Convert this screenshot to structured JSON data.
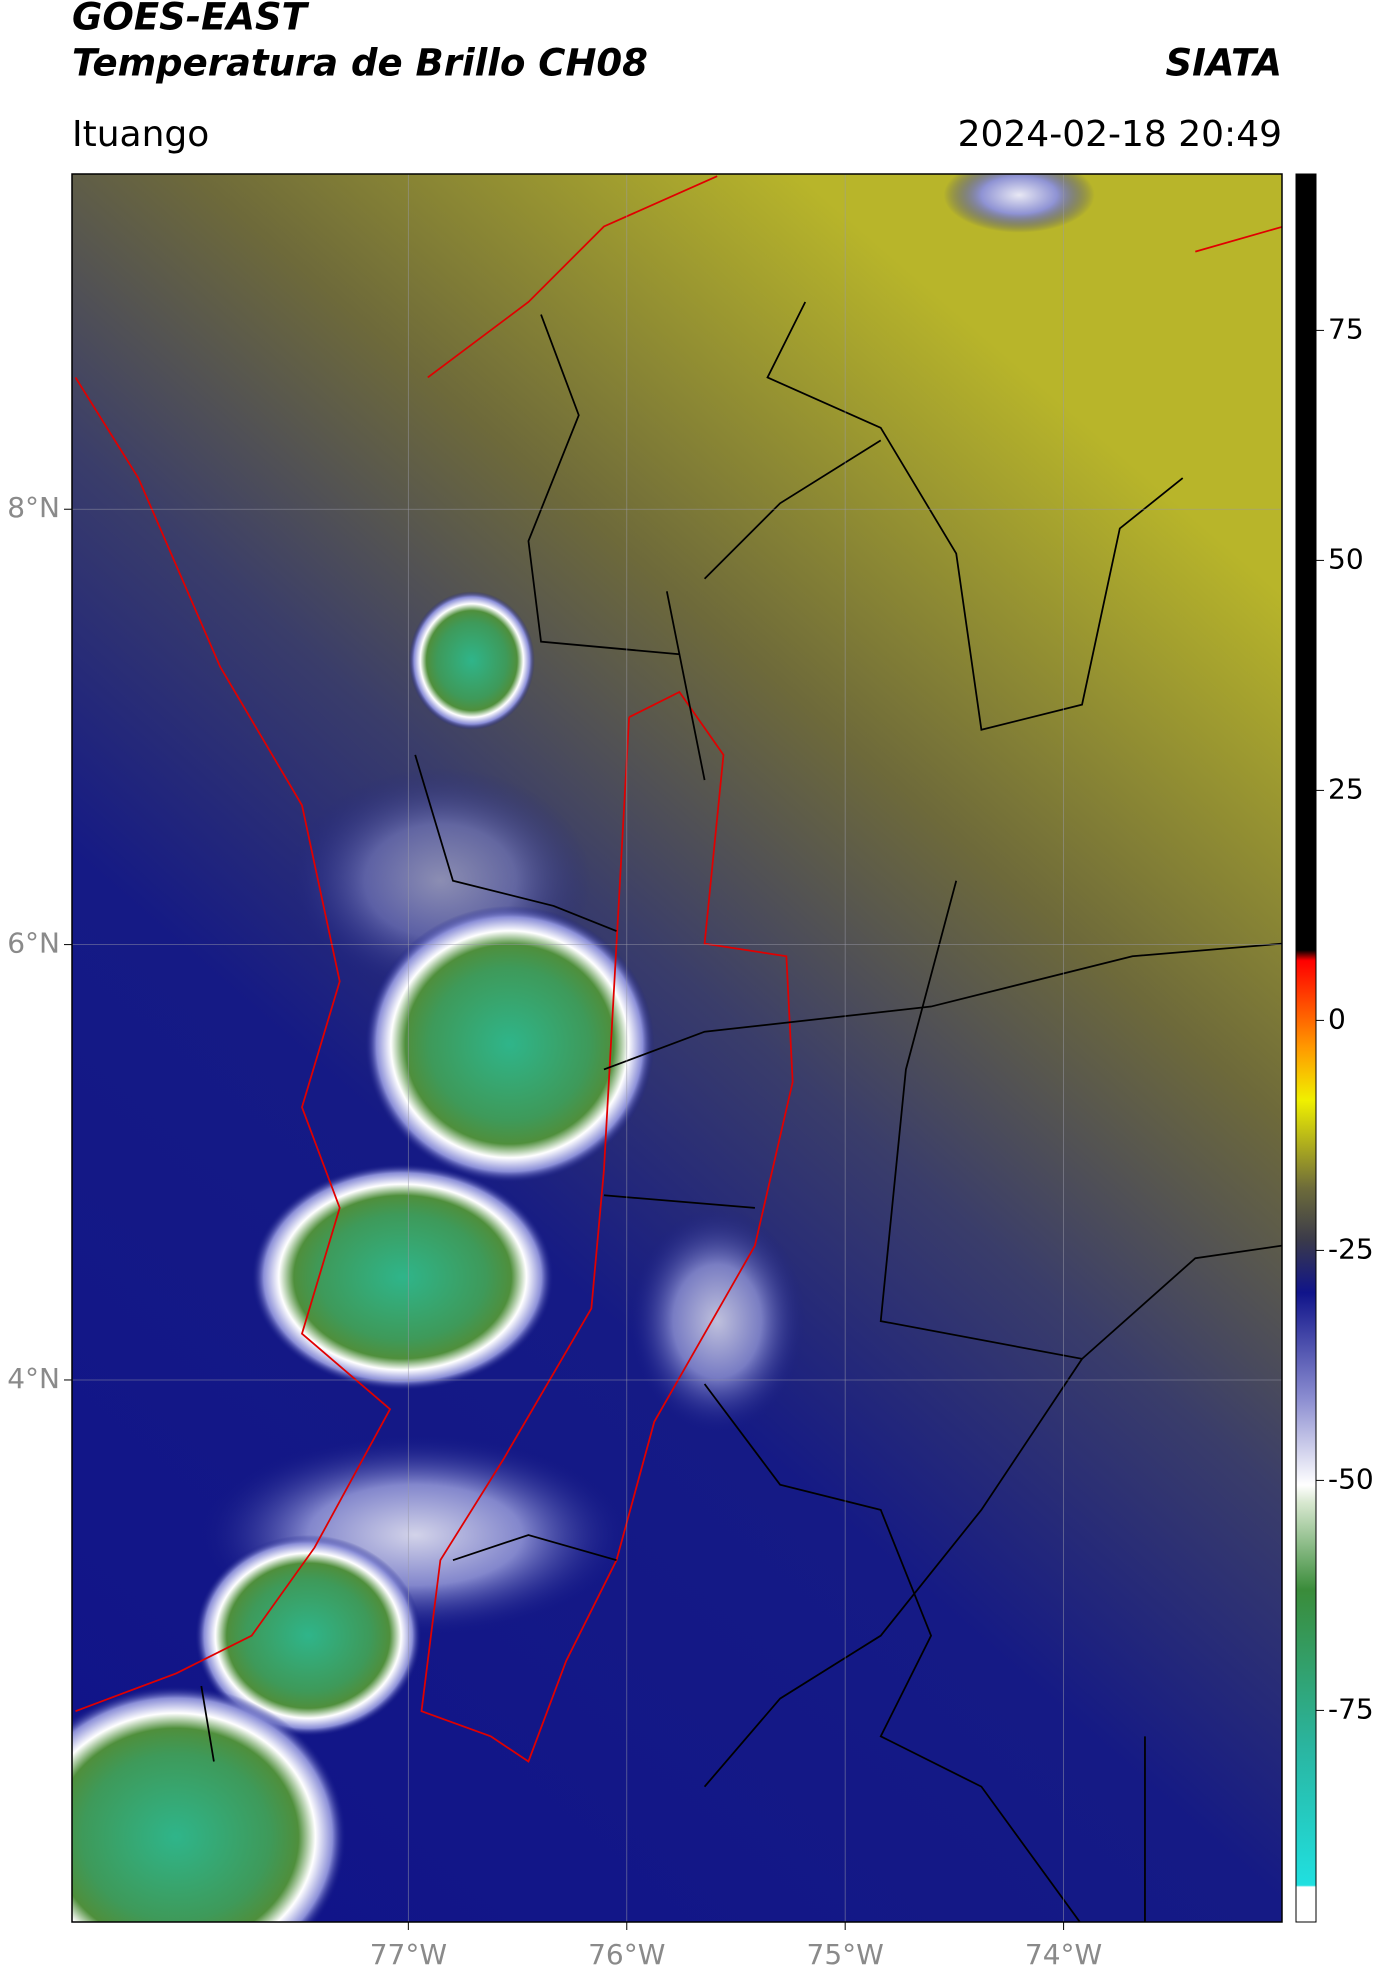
{
  "header": {
    "title": "GOES-EAST",
    "subtitle": "Temperatura de Brillo CH08",
    "source": "SIATA",
    "location": "Ituango",
    "datetime": "2024-02-18 20:49"
  },
  "map": {
    "xlim": [
      -78.54,
      -73.0
    ],
    "xticks": [
      {
        "value": -77,
        "label": "77°W"
      },
      {
        "value": -76,
        "label": "76°W"
      },
      {
        "value": -75,
        "label": "75°W"
      },
      {
        "value": -74,
        "label": "74°W"
      }
    ],
    "ylim": [
      1.51,
      9.54
    ],
    "yticks": [
      {
        "value": 8,
        "label": "8°N"
      },
      {
        "value": 6,
        "label": "6°N"
      },
      {
        "value": 4,
        "label": "4°N"
      }
    ],
    "grid": true
  },
  "colorbar": {
    "lim": [
      -98,
      92
    ],
    "ticks": [
      75,
      50,
      25,
      0,
      -25,
      -50,
      -75
    ]
  }
}
